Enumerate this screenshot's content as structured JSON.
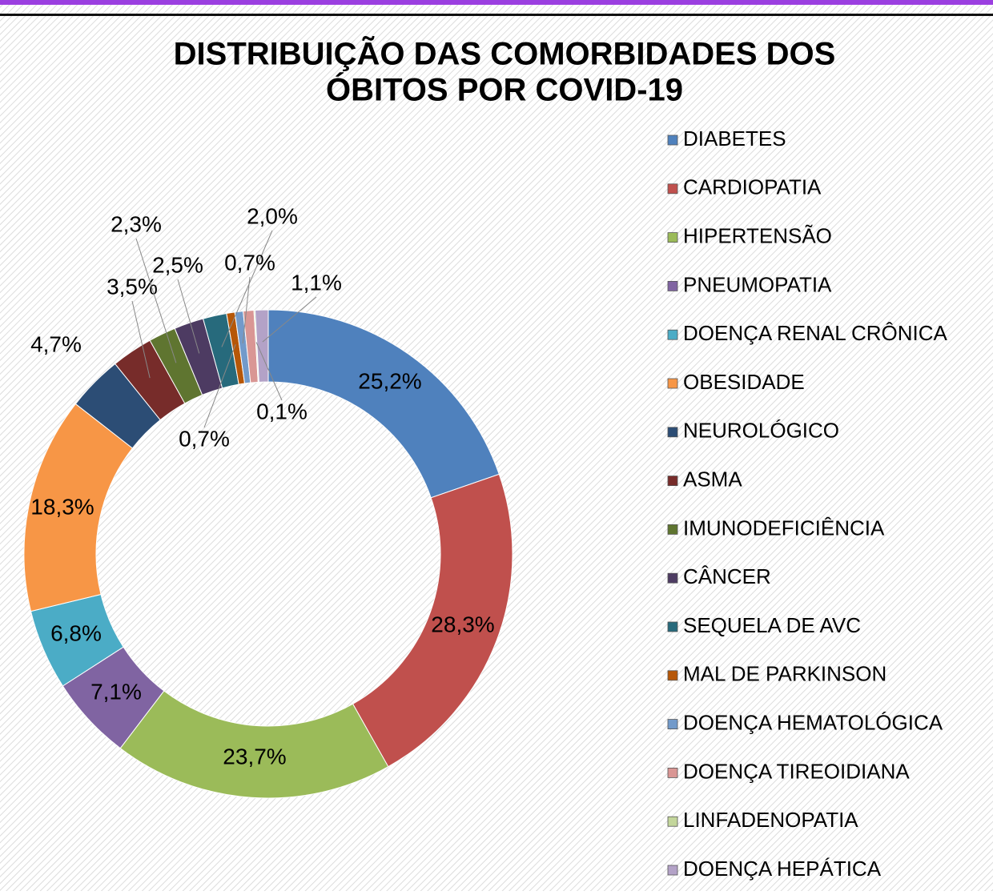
{
  "chart_data": {
    "type": "donut",
    "title": [
      "DISTRIBUIÇÃO DAS COMORBIDADES DOS",
      "ÓBITOS POR COVID-19"
    ],
    "categories": [
      "DIABETES",
      "CARDIOPATIA",
      "HIPERTENSÃO",
      "PNEUMOPATIA",
      "DOENÇA RENAL CRÔNICA",
      "OBESIDADE",
      "NEUROLÓGICO",
      "ASMA",
      "IMUNODEFICIÊNCIA",
      "CÂNCER",
      "SEQUELA DE AVC",
      "MAL DE PARKINSON",
      "DOENÇA HEMATOLÓGICA",
      "DOENÇA TIREOIDIANA",
      "LINFADENOPATIA",
      "DOENÇA HEPÁTICA"
    ],
    "values": [
      25.2,
      28.3,
      23.7,
      7.1,
      6.8,
      18.3,
      4.7,
      3.5,
      2.3,
      2.5,
      2.0,
      0.7,
      0.7,
      0.9,
      0.1,
      1.1
    ],
    "value_labels": [
      "25,2%",
      "28,3%",
      "23,7%",
      "7,1%",
      "6,8%",
      "18,3%",
      "4,7%",
      "3,5%",
      "2,3%",
      "2,5%",
      "2,0%",
      "0,7%",
      "0,7%",
      null,
      "0,1%",
      "1,1%"
    ],
    "colors": [
      "#4f81bd",
      "#c0504d",
      "#9bbb59",
      "#8064a2",
      "#4bacc6",
      "#f79646",
      "#2c4d75",
      "#772c2a",
      "#5f7530",
      "#4d3b62",
      "#276a7c",
      "#b65708",
      "#729aca",
      "#d99694",
      "#c3d69b",
      "#b3a2c7"
    ],
    "legend": "right"
  }
}
